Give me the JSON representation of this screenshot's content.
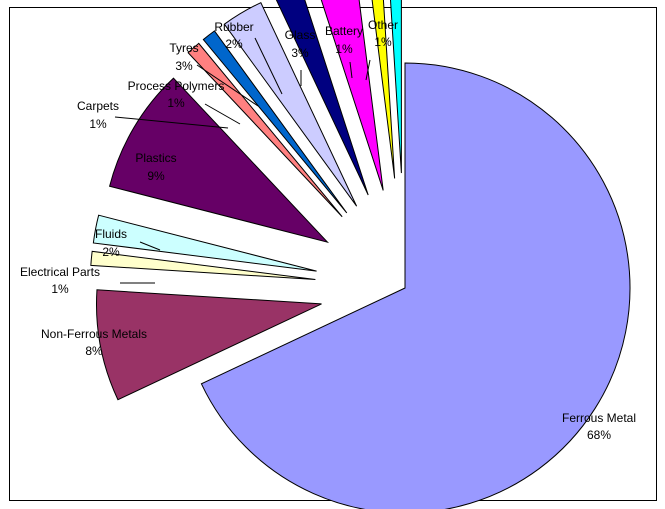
{
  "chart_data": {
    "type": "pie",
    "title": "",
    "legend": "none",
    "exploded": true,
    "slices": [
      {
        "label": "Ferrous Metal",
        "value_label": "68%",
        "value": 68,
        "color": "#9999ff"
      },
      {
        "label": "Non-Ferrous Metals",
        "value_label": "8%",
        "value": 8,
        "color": "#993366"
      },
      {
        "label": "Electrical Parts",
        "value_label": "1%",
        "value": 1,
        "color": "#ffffcc"
      },
      {
        "label": "Fluids",
        "value_label": "2%",
        "value": 2,
        "color": "#ccffff"
      },
      {
        "label": "Plastics",
        "value_label": "9%",
        "value": 9,
        "color": "#660066"
      },
      {
        "label": "Carpets",
        "value_label": "1%",
        "value": 1,
        "color": "#ff8080"
      },
      {
        "label": "Process Polymers",
        "value_label": "1%",
        "value": 1,
        "color": "#0066cc"
      },
      {
        "label": "Tyres",
        "value_label": "3%",
        "value": 3,
        "color": "#ccccff"
      },
      {
        "label": "Rubber",
        "value_label": "2%",
        "value": 2,
        "color": "#000080"
      },
      {
        "label": "Glass",
        "value_label": "3%",
        "value": 3,
        "color": "#ff00ff"
      },
      {
        "label": "Battery",
        "value_label": "1%",
        "value": 1,
        "color": "#ffff00"
      },
      {
        "label": "Other",
        "value_label": "1%",
        "value": 1,
        "color": "#00ffff"
      }
    ]
  }
}
